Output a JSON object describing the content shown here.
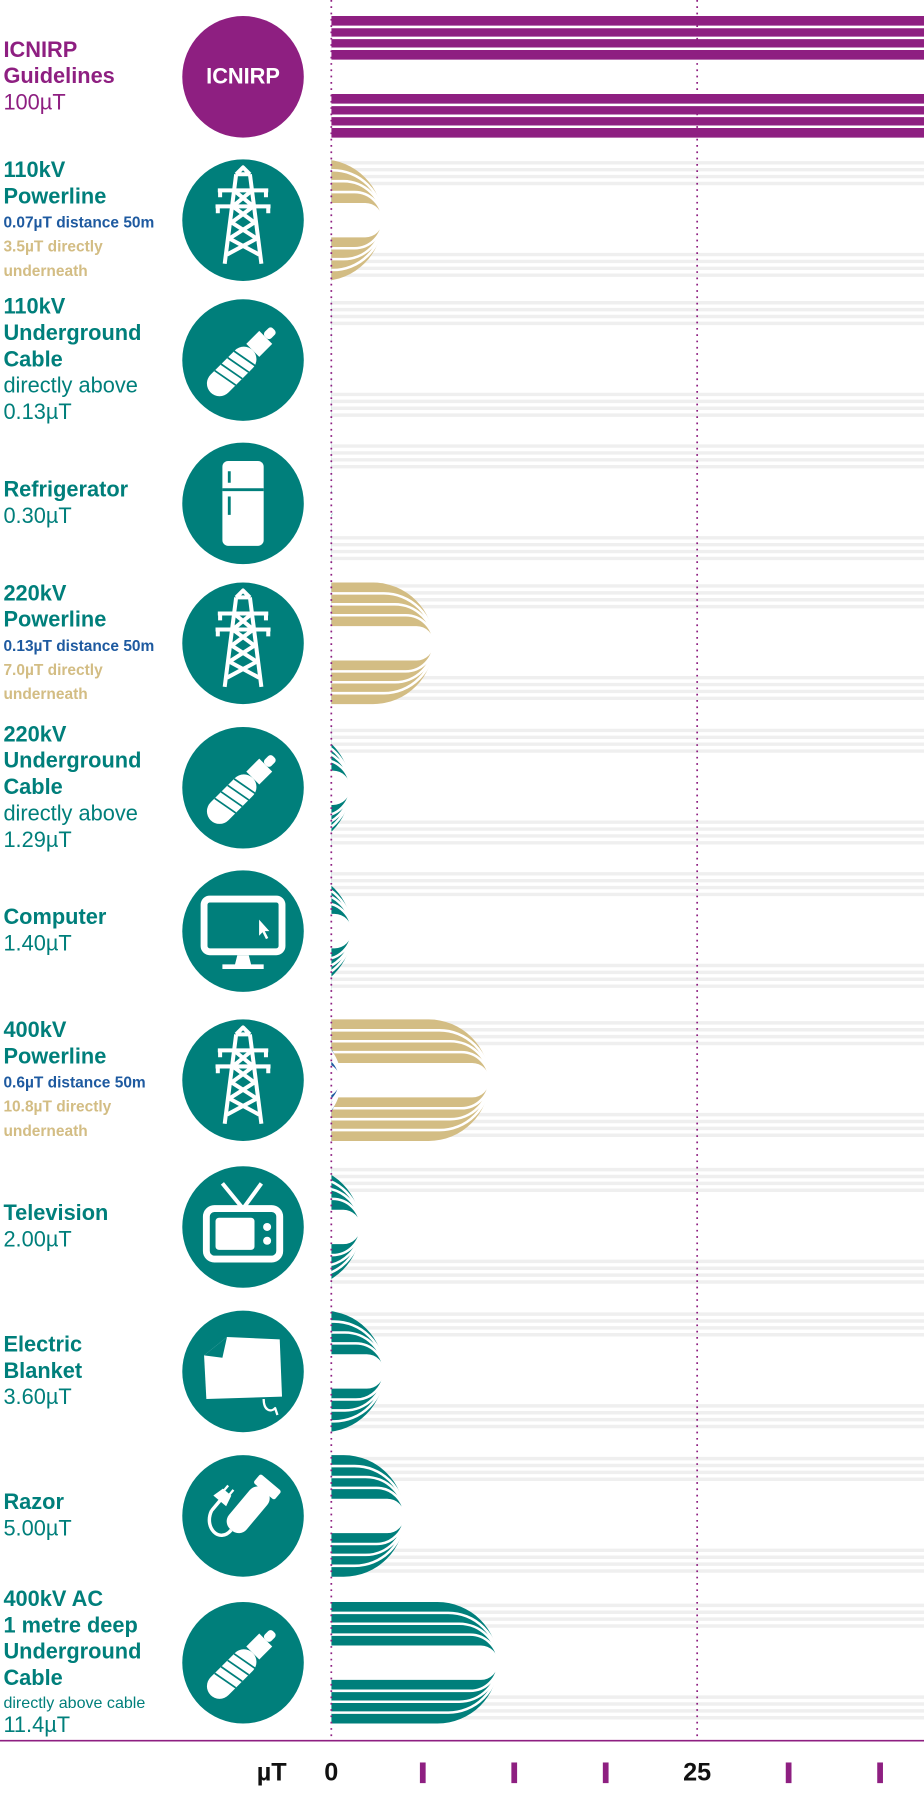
{
  "chart_data": {
    "type": "bar",
    "x_label": "µT",
    "xlim": [
      0,
      40.5
    ],
    "xticks": [
      0,
      25
    ],
    "minor_ticks": [
      6.25,
      12.5,
      18.75,
      31.25,
      37.5
    ],
    "grid": true,
    "grid_color": "#8e1f81",
    "items": [
      {
        "name": [
          "ICNIRP",
          "Guidelines"
        ],
        "badge": "ICNIRP",
        "values": [
          100
        ],
        "value_labels": [
          "100µT"
        ],
        "colors": [
          "#8e1f81"
        ],
        "label_color": "#8e1f81"
      },
      {
        "name": [
          "110kV",
          "Powerline"
        ],
        "values": [
          0.07,
          3.5
        ],
        "value_labels": [
          "0.07µT distance 50m",
          "3.5µT directly underneath"
        ],
        "colors": [
          "#1e5aa0",
          "#d3bd84"
        ],
        "label_color": "#007f7b"
      },
      {
        "name": [
          "110kV",
          "Underground",
          "Cable"
        ],
        "note": "directly above",
        "values": [
          0.13
        ],
        "value_labels": [
          "0.13µT"
        ],
        "colors": [
          "#007f7b"
        ],
        "label_color": "#007f7b"
      },
      {
        "name": [
          "Refrigerator"
        ],
        "values": [
          0.3
        ],
        "value_labels": [
          "0.30µT"
        ],
        "colors": [
          "#007f7b"
        ],
        "label_color": "#007f7b"
      },
      {
        "name": [
          "220kV",
          "Powerline"
        ],
        "values": [
          0.13,
          7.0
        ],
        "value_labels": [
          "0.13µT distance 50m",
          "7.0µT directly underneath"
        ],
        "colors": [
          "#1e5aa0",
          "#d3bd84"
        ],
        "label_color": "#007f7b"
      },
      {
        "name": [
          "220kV",
          "Underground",
          "Cable"
        ],
        "note": "directly above",
        "values": [
          1.29
        ],
        "value_labels": [
          "1.29µT"
        ],
        "colors": [
          "#007f7b"
        ],
        "label_color": "#007f7b"
      },
      {
        "name": [
          "Computer"
        ],
        "values": [
          1.4
        ],
        "value_labels": [
          "1.40µT"
        ],
        "colors": [
          "#007f7b"
        ],
        "label_color": "#007f7b"
      },
      {
        "name": [
          "400kV",
          "Powerline"
        ],
        "values": [
          0.6,
          10.8
        ],
        "value_labels": [
          "0.6µT distance 50m",
          "10.8µT directly underneath"
        ],
        "colors": [
          "#1e5aa0",
          "#d3bd84"
        ],
        "label_color": "#007f7b"
      },
      {
        "name": [
          "Television"
        ],
        "values": [
          2.0
        ],
        "value_labels": [
          "2.00µT"
        ],
        "colors": [
          "#007f7b"
        ],
        "label_color": "#007f7b"
      },
      {
        "name": [
          "Electric",
          "Blanket"
        ],
        "values": [
          3.6
        ],
        "value_labels": [
          "3.60µT"
        ],
        "colors": [
          "#007f7b"
        ],
        "label_color": "#007f7b"
      },
      {
        "name": [
          "Razor"
        ],
        "values": [
          5.0
        ],
        "value_labels": [
          "5.00µT"
        ],
        "colors": [
          "#007f7b"
        ],
        "label_color": "#007f7b"
      },
      {
        "name": [
          "400kV AC",
          "1 metre deep",
          "Underground",
          "Cable"
        ],
        "note": "directly above cable",
        "values": [
          11.4
        ],
        "value_labels": [
          "11.4µT"
        ],
        "colors": [
          "#007f7b"
        ],
        "label_color": "#007f7b"
      }
    ]
  }
}
